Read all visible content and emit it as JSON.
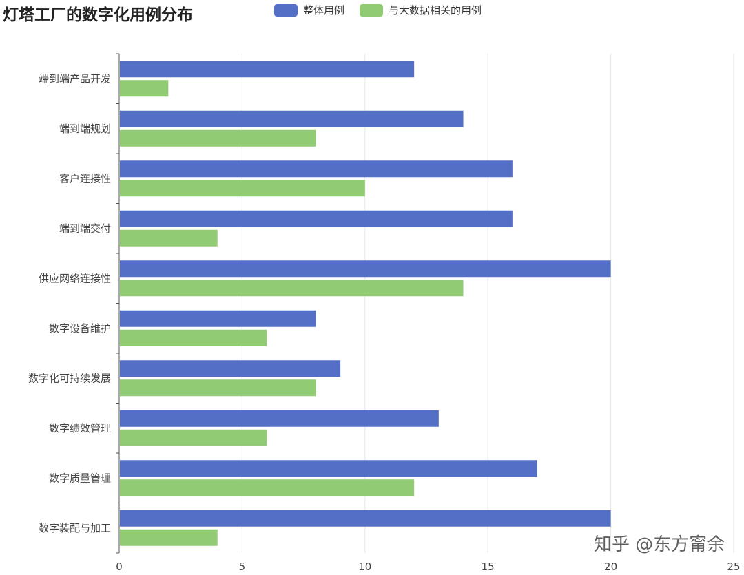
{
  "chart_data": {
    "type": "bar",
    "orientation": "horizontal",
    "title": "灯塔工厂的数字化用例分布",
    "categories": [
      "端到端产品开发",
      "端到端规划",
      "客户连接性",
      "端到端交付",
      "供应网络连接性",
      "数字设备维护",
      "数字化可持续发展",
      "数字绩效管理",
      "数字质量管理",
      "数字装配与加工"
    ],
    "series": [
      {
        "name": "整体用例",
        "color": "#5470c6",
        "values": [
          12,
          14,
          16,
          16,
          20,
          8,
          9,
          13,
          17,
          20
        ]
      },
      {
        "name": "与大数据相关的用例",
        "color": "#91cc75",
        "values": [
          2,
          8,
          10,
          4,
          14,
          6,
          8,
          6,
          12,
          4
        ]
      }
    ],
    "xlim": [
      0,
      25
    ],
    "xticks": [
      0,
      5,
      10,
      15,
      20,
      25
    ],
    "grid": true,
    "legend_position": "top"
  },
  "watermark": "知乎 @东方甯余"
}
